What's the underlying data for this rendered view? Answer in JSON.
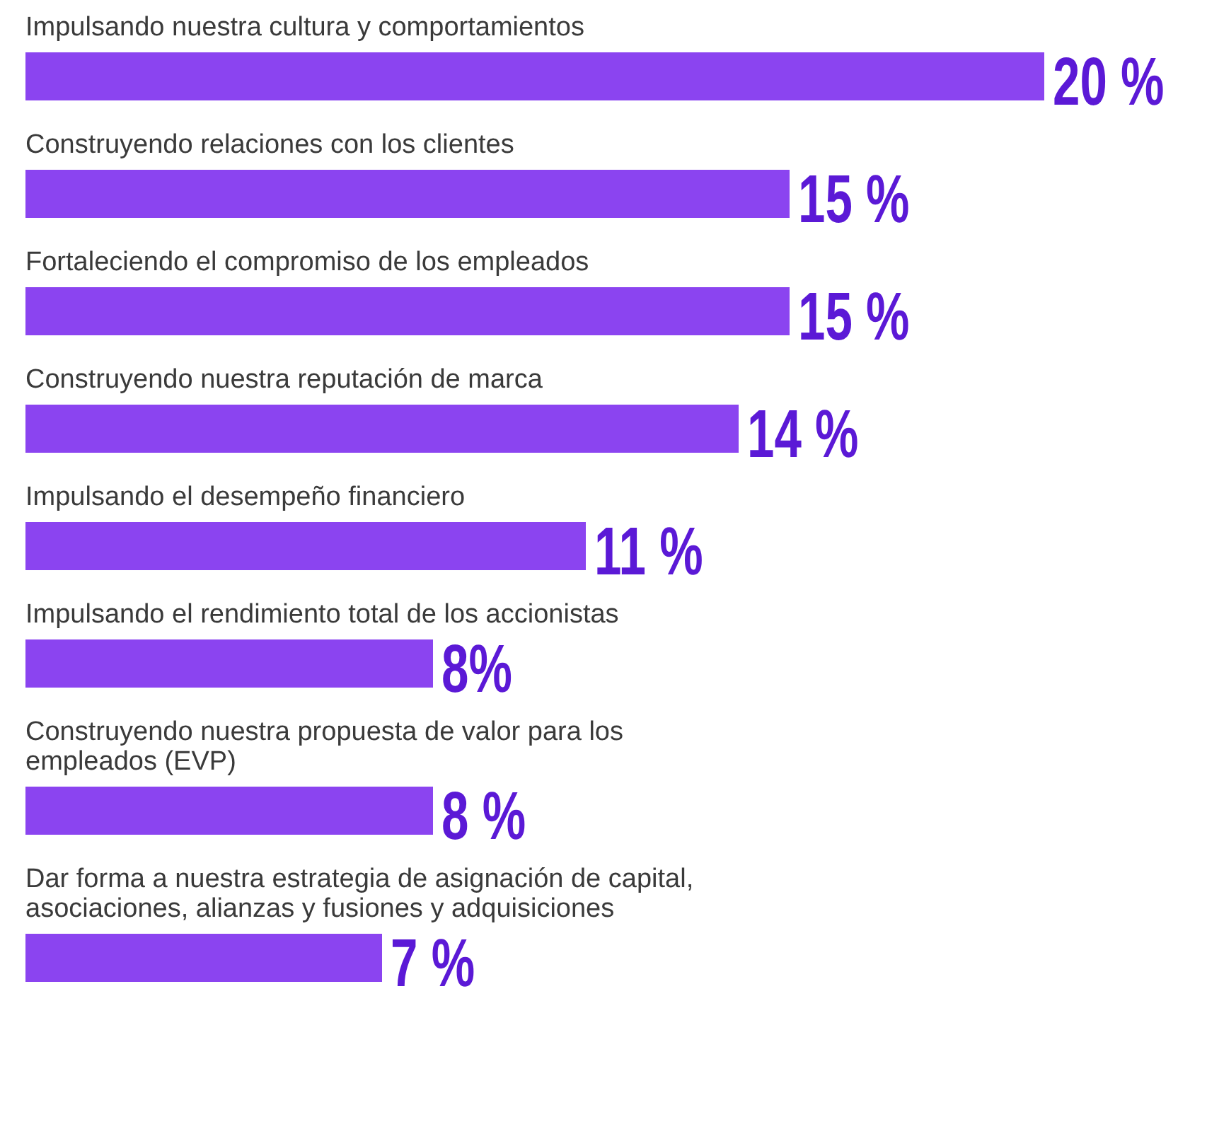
{
  "chart_data": {
    "type": "bar",
    "orientation": "horizontal",
    "categories": [
      "Impulsando nuestra cultura y comportamientos",
      "Construyendo relaciones con los clientes",
      "Fortaleciendo el compromiso de los empleados",
      "Construyendo nuestra reputación de marca",
      "Impulsando el desempeño financiero",
      "Impulsando el rendimiento total de los accionistas",
      "Construyendo nuestra propuesta de valor para los empleados (EVP)",
      "Dar forma a nuestra estrategia de asignación de capital, asociaciones, alianzas y fusiones y adquisiciones"
    ],
    "values": [
      20,
      15,
      15,
      14,
      11,
      8,
      8,
      7
    ],
    "value_labels": [
      "20 %",
      "15 %",
      "15 %",
      "14 %",
      "11 %",
      "8%",
      "8 %",
      "7 %"
    ],
    "color": "#8b44f0"
  }
}
